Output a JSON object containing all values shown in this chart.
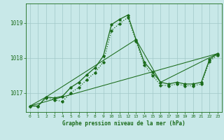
{
  "background_color": "#c8e8e8",
  "grid_color": "#a0c8c8",
  "line_color": "#1a6b1a",
  "title": "Graphe pression niveau de la mer (hPa)",
  "ylabel_ticks": [
    1017,
    1018,
    1019
  ],
  "xlim": [
    -0.5,
    23.5
  ],
  "ylim": [
    1016.45,
    1019.55
  ],
  "x_hours": [
    0,
    1,
    2,
    3,
    4,
    5,
    6,
    7,
    8,
    9,
    10,
    11,
    12,
    13,
    14,
    15,
    16,
    17,
    18,
    19,
    20,
    21,
    22,
    23
  ],
  "series": [
    {
      "x": [
        0,
        1,
        2,
        3,
        4,
        5,
        6,
        7,
        8,
        9,
        10,
        11,
        12,
        13,
        14,
        15,
        16,
        17,
        18,
        19,
        20,
        21,
        22,
        23
      ],
      "y": [
        1016.62,
        1016.62,
        1016.88,
        1016.85,
        1016.9,
        1017.15,
        1017.3,
        1017.52,
        1017.72,
        1018.05,
        1018.95,
        1019.1,
        1019.22,
        1018.52,
        1017.88,
        1017.6,
        1017.3,
        1017.25,
        1017.3,
        1017.25,
        1017.25,
        1017.3,
        1017.95,
        1018.12
      ],
      "linestyle": "-",
      "marker": "D",
      "markersize": 1.8,
      "linewidth": 0.9
    },
    {
      "x": [
        0,
        1,
        2,
        3,
        4,
        5,
        6,
        7,
        8,
        9,
        10,
        11,
        12,
        13,
        14,
        15,
        16,
        17,
        18,
        19,
        20,
        21,
        22,
        23
      ],
      "y": [
        1016.62,
        1016.62,
        1016.85,
        1016.8,
        1016.75,
        1017.0,
        1017.15,
        1017.38,
        1017.58,
        1017.88,
        1018.78,
        1018.98,
        1019.15,
        1018.48,
        1017.8,
        1017.5,
        1017.22,
        1017.2,
        1017.25,
        1017.2,
        1017.2,
        1017.25,
        1017.9,
        1018.08
      ],
      "linestyle": ":",
      "marker": "D",
      "markersize": 1.8,
      "linewidth": 0.9
    },
    {
      "x": [
        0,
        23
      ],
      "y": [
        1016.62,
        1018.12
      ],
      "linestyle": "-",
      "marker": "None",
      "markersize": 0,
      "linewidth": 0.75
    },
    {
      "x": [
        0,
        2,
        13,
        16,
        23
      ],
      "y": [
        1016.62,
        1016.88,
        1018.52,
        1017.3,
        1018.12
      ],
      "linestyle": "-",
      "marker": "None",
      "markersize": 0,
      "linewidth": 0.75
    }
  ]
}
